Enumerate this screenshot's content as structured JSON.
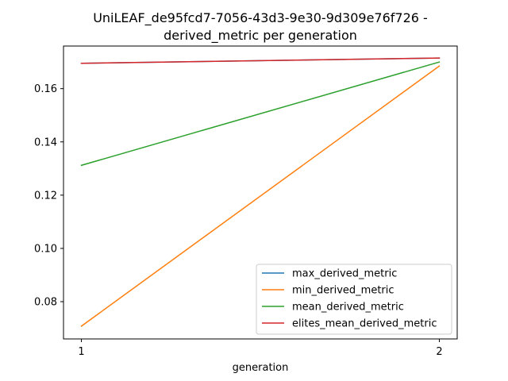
{
  "chart_data": {
    "type": "line",
    "title_line1": "UniLEAF_de95fcd7-7056-43d3-9e30-9d309e76f726 -",
    "title_line2": "derived_metric per generation",
    "xlabel": "generation",
    "ylabel": "",
    "x": [
      1,
      2
    ],
    "xticks": [
      1,
      2
    ],
    "xtick_labels": [
      "1",
      "2"
    ],
    "yticks": [
      0.08,
      0.1,
      0.12,
      0.14,
      0.16
    ],
    "ytick_labels": [
      "0.08",
      "0.10",
      "0.12",
      "0.14",
      "0.16"
    ],
    "xlim": [
      0.95,
      2.05
    ],
    "ylim": [
      0.066,
      0.176
    ],
    "grid": false,
    "legend_position": "lower right",
    "series": [
      {
        "name": "max_derived_metric",
        "color": "#1f77b4",
        "values": [
          0.1695,
          0.1715
        ]
      },
      {
        "name": "min_derived_metric",
        "color": "#ff7f0e",
        "values": [
          0.0708,
          0.1685
        ]
      },
      {
        "name": "mean_derived_metric",
        "color": "#2ca02c",
        "values": [
          0.1312,
          0.17
        ]
      },
      {
        "name": "elites_mean_derived_metric",
        "color": "#d62728",
        "values": [
          0.1695,
          0.1715
        ]
      }
    ]
  }
}
